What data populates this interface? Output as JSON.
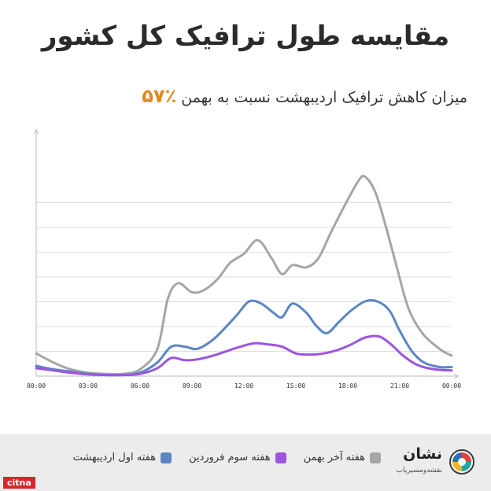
{
  "title": "مقایسه طول ترافیک کل کشور",
  "subtitle": {
    "percent": "٪۵۷",
    "text": "میزان کاهش ترافیک اردیبهشت نسبت به بهمن"
  },
  "colors": {
    "grey": "#a6a6a6",
    "blue": "#5b86c5",
    "purple": "#9b55e0",
    "accent": "#e08a1e",
    "grid": "#dddddd"
  },
  "legend": [
    {
      "label": "هفته آخر بهمن",
      "color": "#a6a6a6"
    },
    {
      "label": "هفته سوم فروردین",
      "color": "#9b55e0"
    },
    {
      "label": "هفته اول اردیبهشت",
      "color": "#5b86c5"
    }
  ],
  "logo": {
    "name": "نشان",
    "tagline": "نقشه‌ومسیریاب"
  },
  "source_tag": "citna",
  "chart_data": {
    "type": "line",
    "x_tick_labels": [
      "00:00",
      "03:00",
      "06:00",
      "09:00",
      "12:00",
      "15:00",
      "18:00",
      "21:00",
      "00:00"
    ],
    "x_range": [
      0,
      24
    ],
    "y_range": [
      0,
      10
    ],
    "grid": true,
    "series": [
      {
        "name": "هفته آخر بهمن",
        "color": "#a6a6a6",
        "points": [
          [
            0,
            1.0
          ],
          [
            1,
            0.6
          ],
          [
            2,
            0.3
          ],
          [
            3,
            0.15
          ],
          [
            4,
            0.1
          ],
          [
            5,
            0.1
          ],
          [
            6,
            0.3
          ],
          [
            7,
            1.2
          ],
          [
            7.6,
            3.4
          ],
          [
            8.2,
            4.1
          ],
          [
            9,
            3.7
          ],
          [
            9.7,
            3.8
          ],
          [
            10.5,
            4.3
          ],
          [
            11.2,
            5.0
          ],
          [
            12,
            5.4
          ],
          [
            12.8,
            6.0
          ],
          [
            13.6,
            5.2
          ],
          [
            14.2,
            4.5
          ],
          [
            14.8,
            4.9
          ],
          [
            15.6,
            4.8
          ],
          [
            16.3,
            5.2
          ],
          [
            17,
            6.3
          ],
          [
            17.8,
            7.5
          ],
          [
            18.6,
            8.6
          ],
          [
            19,
            8.8
          ],
          [
            19.6,
            8.1
          ],
          [
            20.2,
            6.6
          ],
          [
            20.8,
            4.9
          ],
          [
            21.5,
            3.0
          ],
          [
            22.3,
            1.9
          ],
          [
            23.3,
            1.2
          ],
          [
            24,
            0.9
          ]
        ]
      },
      {
        "name": "هفته اول اردیبهشت",
        "color": "#5b86c5",
        "points": [
          [
            0,
            0.45
          ],
          [
            1,
            0.3
          ],
          [
            2,
            0.2
          ],
          [
            3,
            0.1
          ],
          [
            4,
            0.05
          ],
          [
            5,
            0.05
          ],
          [
            6,
            0.15
          ],
          [
            7,
            0.6
          ],
          [
            7.8,
            1.3
          ],
          [
            8.6,
            1.3
          ],
          [
            9.3,
            1.2
          ],
          [
            10.2,
            1.6
          ],
          [
            11,
            2.2
          ],
          [
            11.6,
            2.7
          ],
          [
            12.3,
            3.3
          ],
          [
            13,
            3.2
          ],
          [
            13.7,
            2.8
          ],
          [
            14.2,
            2.6
          ],
          [
            14.8,
            3.2
          ],
          [
            15.6,
            2.8
          ],
          [
            16.2,
            2.2
          ],
          [
            16.8,
            1.9
          ],
          [
            17.5,
            2.4
          ],
          [
            18.2,
            2.9
          ],
          [
            19,
            3.3
          ],
          [
            19.7,
            3.3
          ],
          [
            20.4,
            2.9
          ],
          [
            21,
            2.0
          ],
          [
            21.7,
            1.1
          ],
          [
            22.4,
            0.6
          ],
          [
            23.3,
            0.4
          ],
          [
            24,
            0.4
          ]
        ]
      },
      {
        "name": "هفته سوم فروردین",
        "color": "#9b55e0",
        "points": [
          [
            0,
            0.35
          ],
          [
            1,
            0.25
          ],
          [
            2,
            0.15
          ],
          [
            3,
            0.08
          ],
          [
            4,
            0.05
          ],
          [
            5,
            0.05
          ],
          [
            6,
            0.1
          ],
          [
            7,
            0.35
          ],
          [
            7.8,
            0.8
          ],
          [
            8.6,
            0.7
          ],
          [
            9.4,
            0.75
          ],
          [
            10.2,
            0.9
          ],
          [
            11,
            1.1
          ],
          [
            11.8,
            1.3
          ],
          [
            12.6,
            1.45
          ],
          [
            13.4,
            1.4
          ],
          [
            14.2,
            1.3
          ],
          [
            15,
            1.0
          ],
          [
            15.8,
            0.95
          ],
          [
            16.6,
            1.0
          ],
          [
            17.4,
            1.15
          ],
          [
            18.2,
            1.4
          ],
          [
            19,
            1.7
          ],
          [
            19.8,
            1.75
          ],
          [
            20.5,
            1.4
          ],
          [
            21.2,
            0.9
          ],
          [
            22,
            0.5
          ],
          [
            23,
            0.3
          ],
          [
            24,
            0.25
          ]
        ]
      }
    ]
  }
}
